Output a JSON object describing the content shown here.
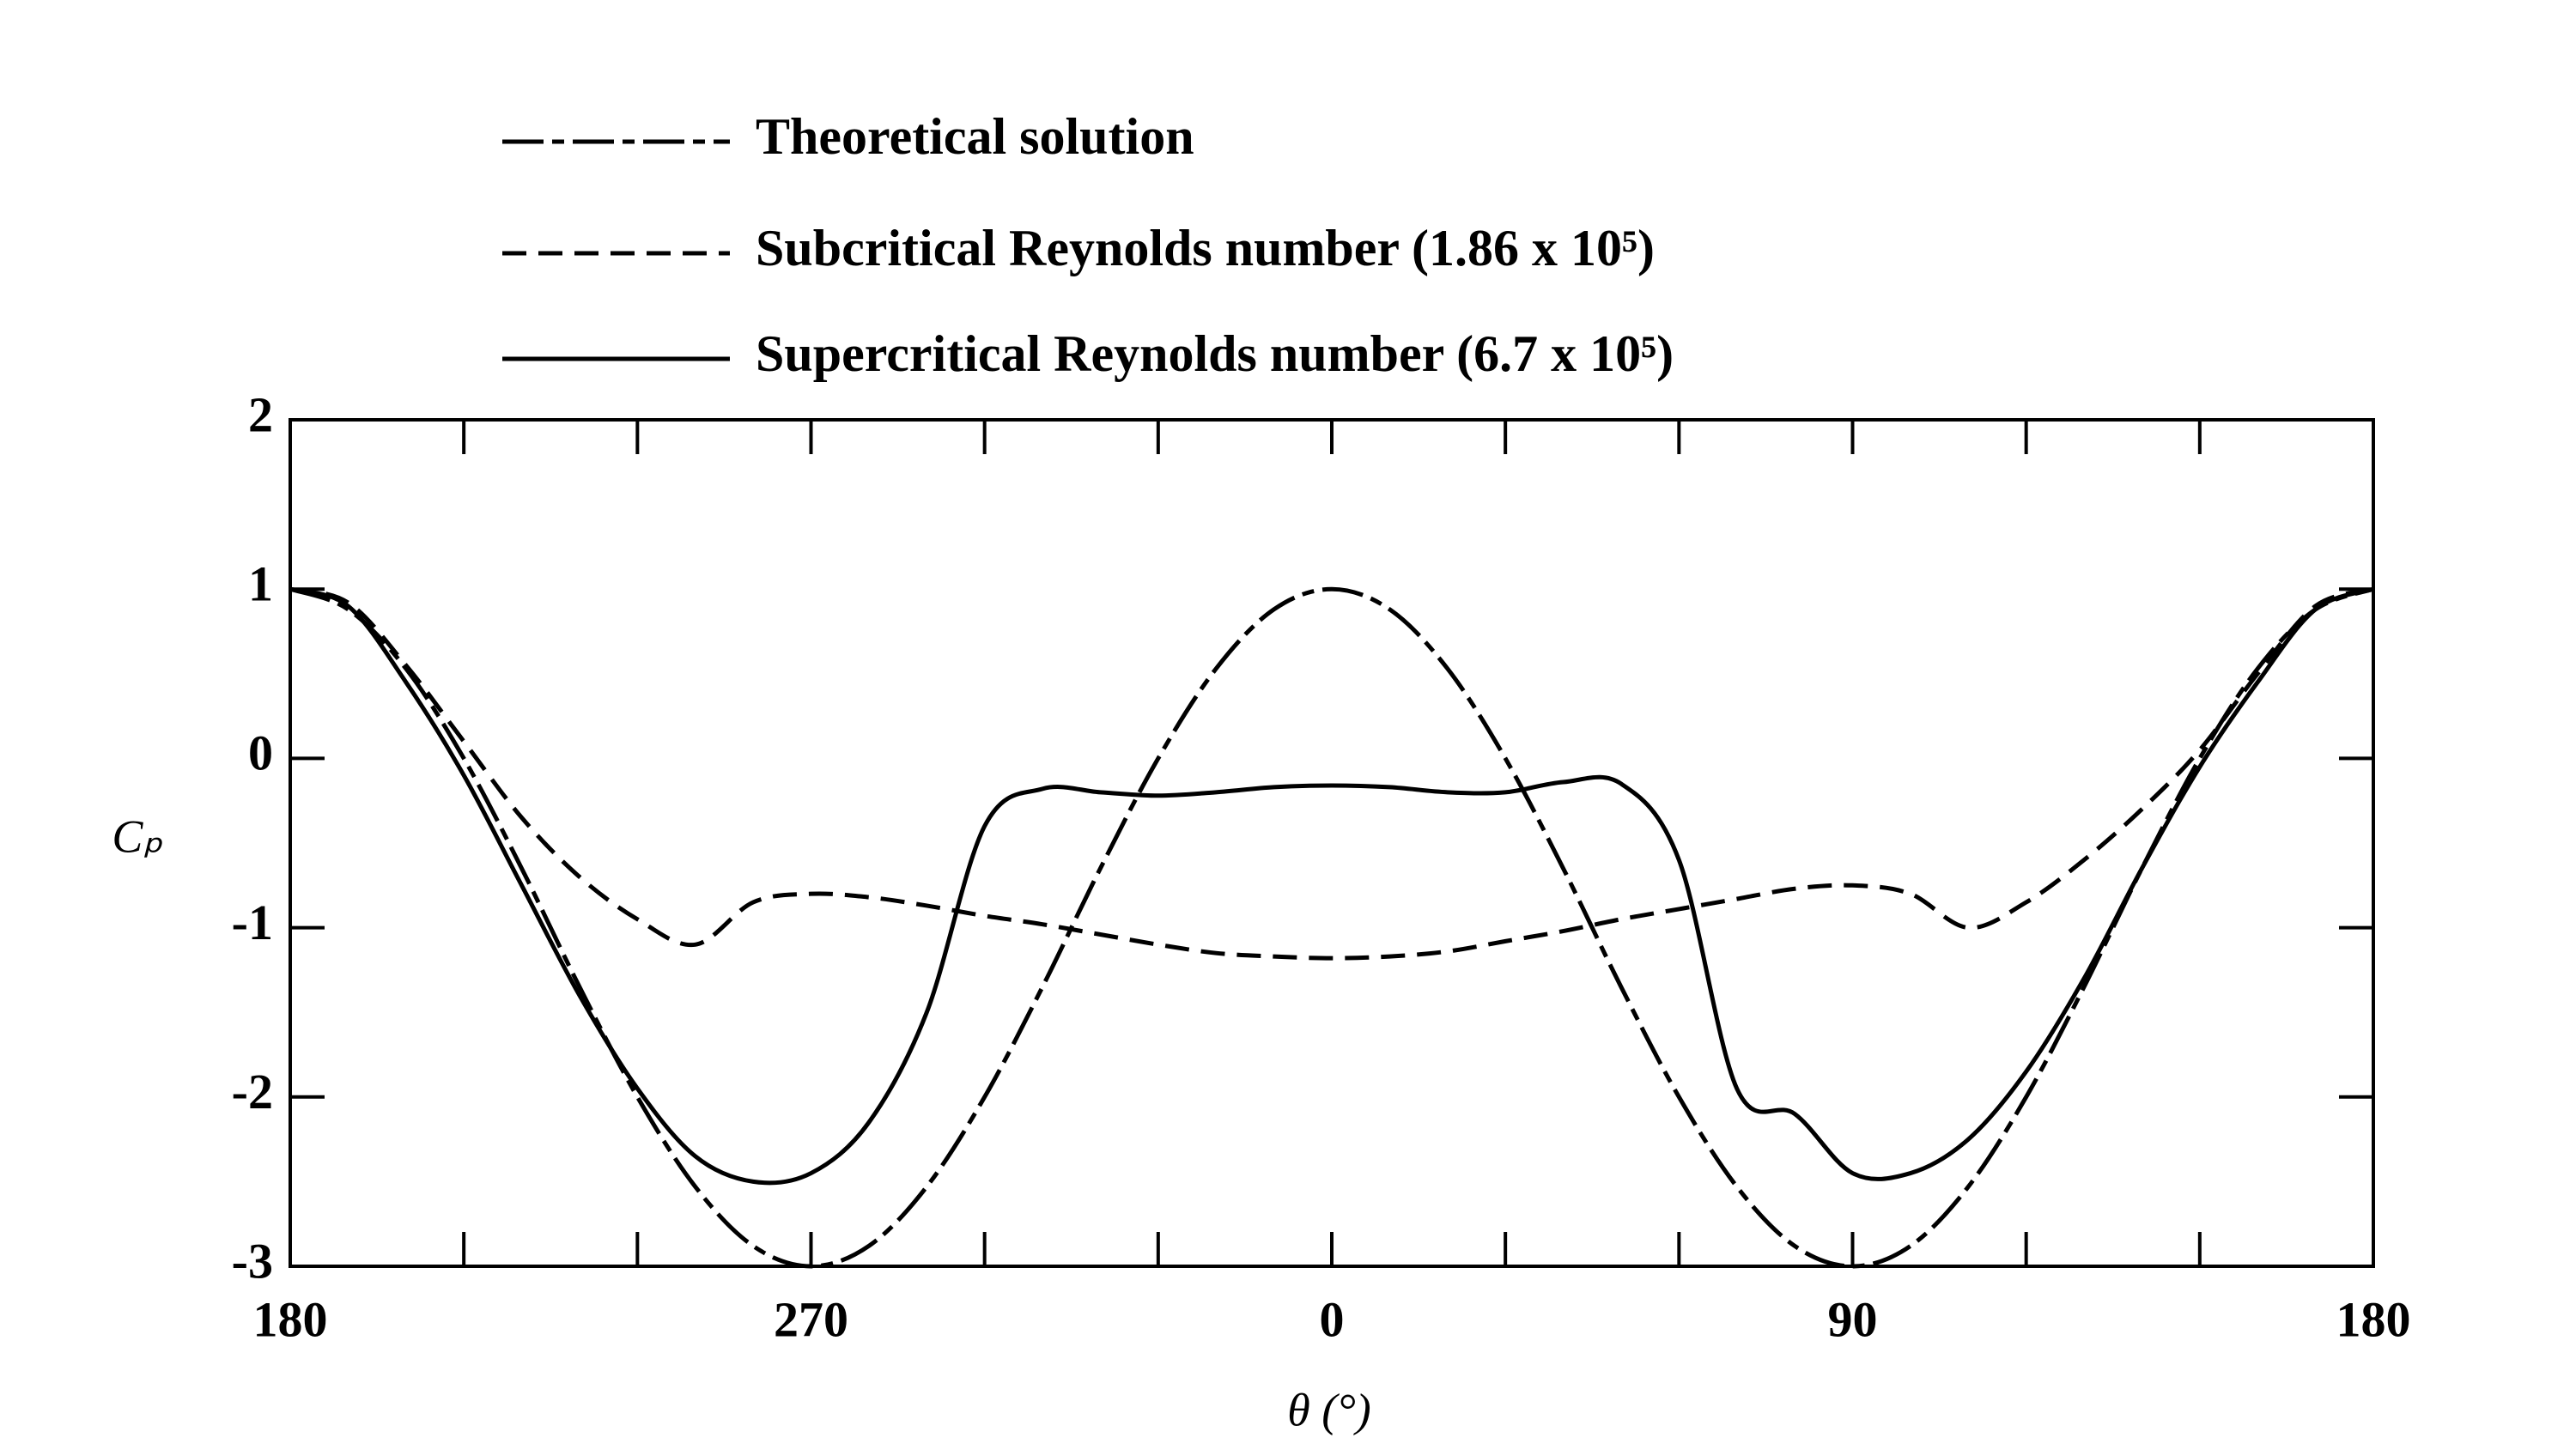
{
  "chart_data": {
    "type": "line",
    "legend": "top",
    "x_label": "θ (°)",
    "y_label": "Cₚ",
    "xlim": [
      -180,
      180
    ],
    "xticks": [
      {
        "value": -180,
        "label": "180"
      },
      {
        "value": -90,
        "label": "270"
      },
      0,
      90,
      {
        "value": 180,
        "label": "180"
      }
    ],
    "xminorticks": [
      -150,
      -120,
      -60,
      -30,
      30,
      60,
      120,
      150
    ],
    "ylim": [
      -3,
      2
    ],
    "yticks": [
      -3,
      -2,
      -1,
      0,
      1,
      2
    ],
    "x": [
      -180,
      -170,
      -160,
      -150,
      -140,
      -130,
      -120,
      -110,
      -100,
      -90,
      -80,
      -70,
      -60,
      -50,
      -40,
      -30,
      -20,
      -10,
      0,
      10,
      20,
      30,
      40,
      50,
      60,
      70,
      80,
      90,
      100,
      110,
      120,
      130,
      140,
      150,
      160,
      170,
      180
    ],
    "series": [
      {
        "name": "Theoretical solution",
        "color": "#000000",
        "style": "dash-dot",
        "values": [
          1,
          0.88,
          0.53,
          0,
          -0.65,
          -1.35,
          -2,
          -2.53,
          -2.88,
          -3,
          -2.88,
          -2.53,
          -2,
          -1.35,
          -0.65,
          0,
          0.53,
          0.88,
          1,
          0.88,
          0.53,
          0,
          -0.65,
          -1.35,
          -2,
          -2.53,
          -2.88,
          -3,
          -2.88,
          -2.53,
          -2,
          -1.35,
          -0.65,
          0,
          0.53,
          0.88,
          1
        ]
      },
      {
        "name": "Subcritical Reynolds number (1.86 x 10⁵)",
        "color": "#000000",
        "style": "dashed",
        "values": [
          1,
          0.92,
          0.55,
          0.1,
          -0.35,
          -0.7,
          -0.95,
          -1.1,
          -0.85,
          -0.8,
          -0.82,
          -0.87,
          -0.93,
          -0.98,
          -1.04,
          -1.1,
          -1.15,
          -1.17,
          -1.18,
          -1.17,
          -1.14,
          -1.08,
          -1.02,
          -0.95,
          -0.89,
          -0.83,
          -0.77,
          -0.75,
          -0.8,
          -1.0,
          -0.85,
          -0.6,
          -0.3,
          0.05,
          0.5,
          0.9,
          1
        ]
      },
      {
        "name": "Supercritical Reynolds number (6.7 x 10⁵)",
        "color": "#000000",
        "style": "solid",
        "values": [
          1,
          0.9,
          0.45,
          -0.1,
          -0.75,
          -1.4,
          -1.95,
          -2.35,
          -2.5,
          -2.45,
          -2.15,
          -1.5,
          -0.4,
          -0.18,
          -0.2,
          -0.22,
          -0.2,
          -0.17,
          -0.16,
          -0.17,
          -0.2,
          -0.2,
          -0.14,
          -0.15,
          -0.6,
          -1.95,
          -2.1,
          -2.45,
          -2.45,
          -2.25,
          -1.85,
          -1.3,
          -0.65,
          -0.05,
          0.45,
          0.88,
          1
        ]
      }
    ]
  }
}
